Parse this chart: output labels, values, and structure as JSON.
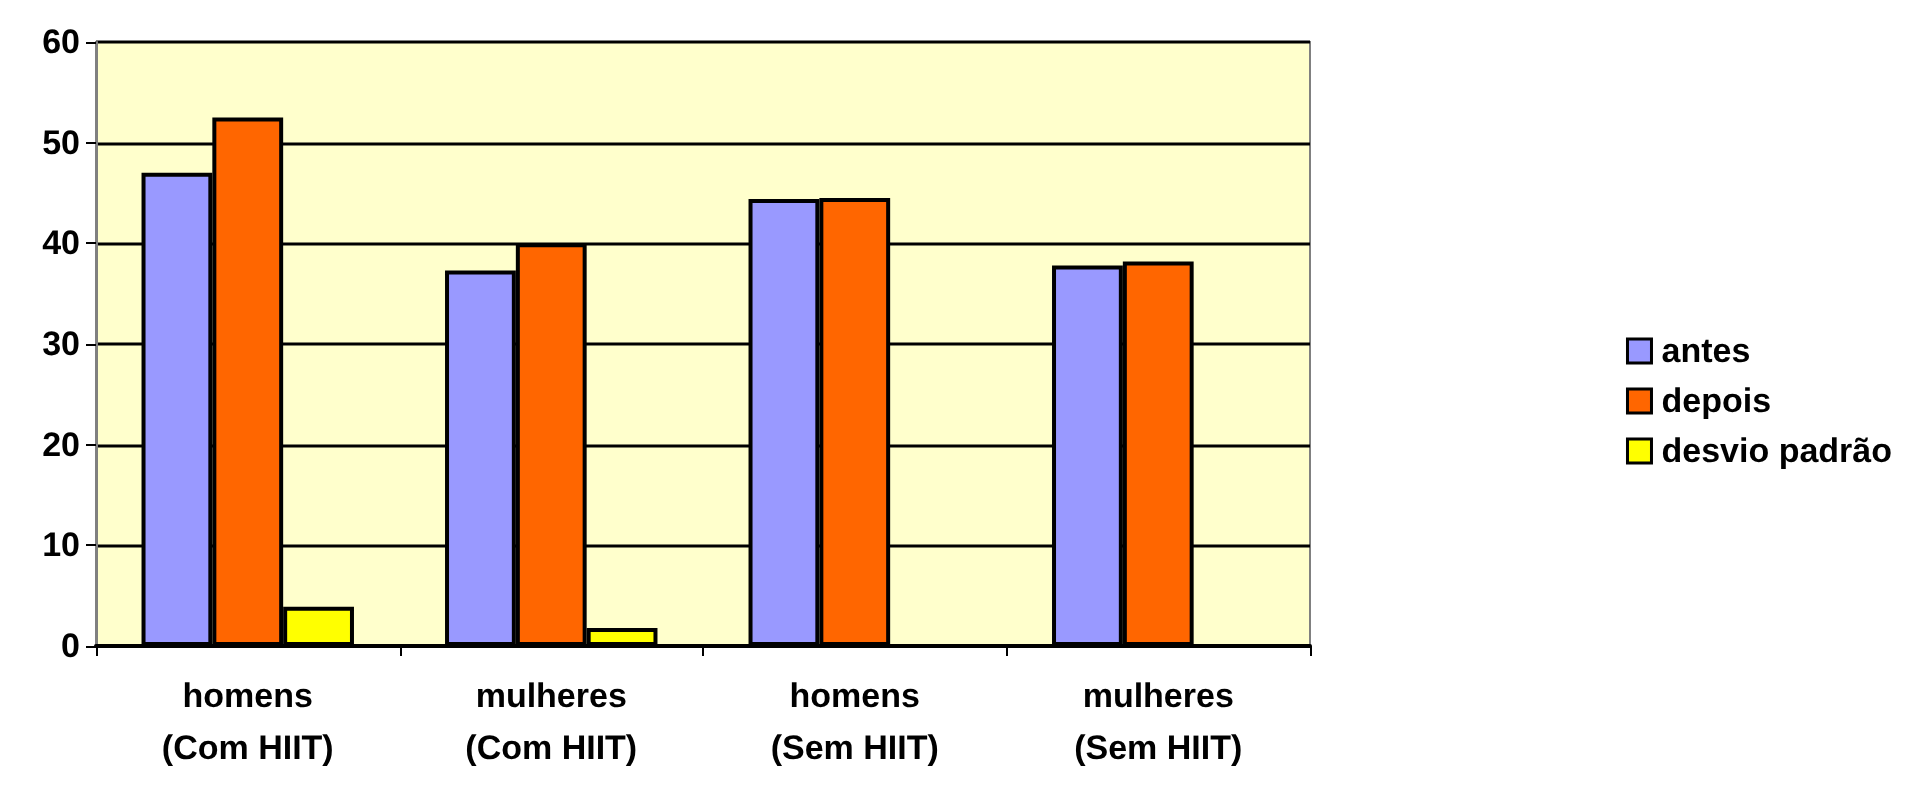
{
  "chart_data": {
    "type": "bar",
    "categories": [
      "homens\n(Com HIIT)",
      "mulheres\n(Com HIIT)",
      "homens\n(Sem HIIT)",
      "mulheres\n(Sem HIIT)"
    ],
    "series": [
      {
        "name": "antes",
        "color": "#9999ff",
        "values": [
          47.0,
          37.3,
          44.4,
          37.8
        ]
      },
      {
        "name": "depois",
        "color": "#ff6600",
        "values": [
          52.5,
          40.0,
          44.5,
          38.2
        ]
      },
      {
        "name": "desvio padrão",
        "color": "#ffff00",
        "values": [
          3.9,
          1.8,
          null,
          null
        ]
      }
    ],
    "ylim": [
      0,
      60
    ],
    "yticks": [
      0,
      10,
      20,
      30,
      40,
      50,
      60
    ],
    "grid": "y",
    "legend": "right"
  }
}
